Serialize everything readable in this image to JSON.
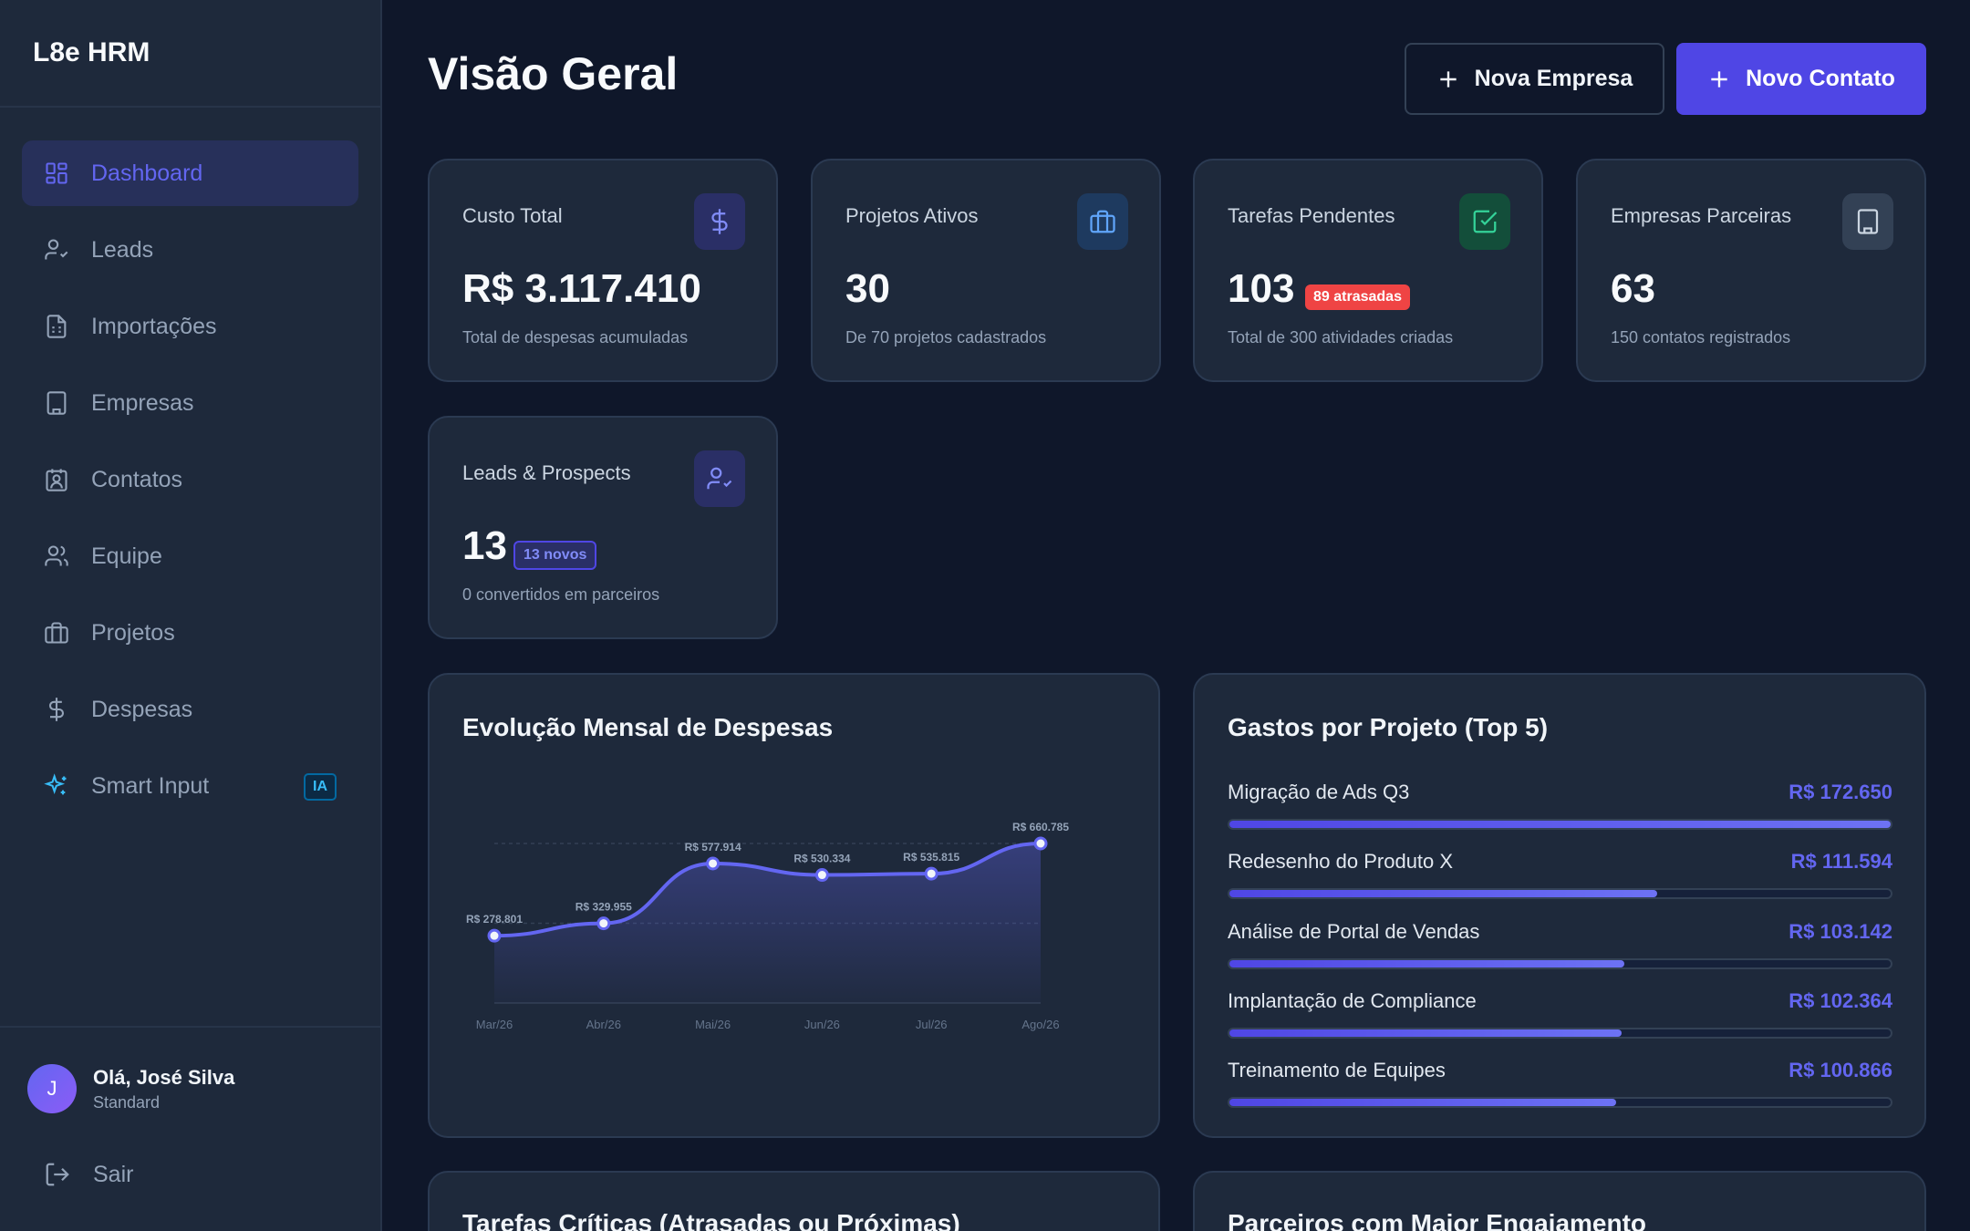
{
  "app": {
    "name": "L8e HRM"
  },
  "sidebar": {
    "items": [
      {
        "label": "Dashboard",
        "icon": "dashboard-icon",
        "active": true
      },
      {
        "label": "Leads",
        "icon": "user-check-icon"
      },
      {
        "label": "Importações",
        "icon": "file-spreadsheet-icon"
      },
      {
        "label": "Empresas",
        "icon": "building-icon"
      },
      {
        "label": "Contatos",
        "icon": "contact-icon"
      },
      {
        "label": "Equipe",
        "icon": "users-icon"
      },
      {
        "label": "Projetos",
        "icon": "briefcase-icon"
      },
      {
        "label": "Despesas",
        "icon": "dollar-icon"
      },
      {
        "label": "Smart Input",
        "icon": "sparkles-icon",
        "badge": "IA"
      }
    ],
    "user": {
      "initial": "J",
      "greeting": "Olá, José Silva",
      "role": "Standard"
    },
    "logout": "Sair"
  },
  "header": {
    "title": "Visão Geral",
    "btn_company": "Nova Empresa",
    "btn_contact": "Novo Contato"
  },
  "stats": {
    "cost": {
      "label": "Custo Total",
      "value": "R$ 3.117.410",
      "sub": "Total de despesas acumuladas"
    },
    "projects": {
      "label": "Projetos Ativos",
      "value": "30",
      "sub": "De 70 projetos cadastrados"
    },
    "tasks": {
      "label": "Tarefas Pendentes",
      "value": "103",
      "badge": "89 atrasadas",
      "sub": "Total de 300 atividades criadas"
    },
    "partners": {
      "label": "Empresas Parceiras",
      "value": "63",
      "sub": "150 contatos registrados"
    },
    "leads": {
      "label": "Leads & Prospects",
      "value": "13",
      "badge": "13 novos",
      "sub": "0 convertidos em parceiros"
    }
  },
  "chart_data": {
    "type": "area",
    "title": "Evolução Mensal de Despesas",
    "categories": [
      "Mar/26",
      "Abr/26",
      "Mai/26",
      "Jun/26",
      "Jul/26",
      "Ago/26"
    ],
    "values": [
      278801,
      329955,
      577914,
      530334,
      535815,
      660785
    ],
    "labels": [
      "R$ 278.801",
      "R$ 329.955",
      "R$ 577.914",
      "R$ 530.334",
      "R$ 535.815",
      "R$ 660.785"
    ],
    "ylim": [
      0,
      660785
    ],
    "color": "#6366f1"
  },
  "top_projects": {
    "title": "Gastos por Projeto (Top 5)",
    "items": [
      {
        "name": "Migração de Ads Q3",
        "amount": "R$ 172.650",
        "value": 172650
      },
      {
        "name": "Redesenho do Produto X",
        "amount": "R$ 111.594",
        "value": 111594
      },
      {
        "name": "Análise de Portal de Vendas",
        "amount": "R$ 103.142",
        "value": 103142
      },
      {
        "name": "Implantação de Compliance",
        "amount": "R$ 102.364",
        "value": 102364
      },
      {
        "name": "Treinamento de Equipes",
        "amount": "R$ 100.866",
        "value": 100866
      }
    ]
  },
  "bottom": {
    "tasks_title": "Tarefas Críticas (Atrasadas ou Próximas)",
    "partners_title": "Parceiros com Maior Engajamento"
  }
}
